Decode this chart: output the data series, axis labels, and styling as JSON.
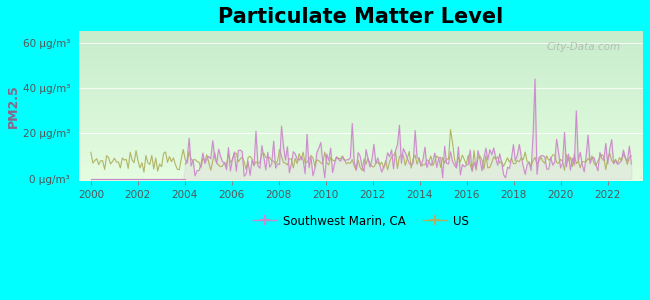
{
  "title": "Particulate Matter Level",
  "ylabel": "PM2.5",
  "ytick_labels": [
    "0 μg/m³",
    "20 μg/m³",
    "40 μg/m³",
    "60 μg/m³"
  ],
  "ytick_values": [
    0,
    20,
    40,
    60
  ],
  "xlim": [
    1999.5,
    2023.5
  ],
  "ylim": [
    -1,
    65
  ],
  "background_outer": "#00ffff",
  "bg_top_color": "#c8eec8",
  "bg_bottom_color": "#e8fce8",
  "sw_marin_color": "#cc88cc",
  "us_color": "#b0b060",
  "sw_marin_label": "Southwest Marin, CA",
  "us_label": "US",
  "watermark": "City-Data.com",
  "title_fontsize": 15,
  "axis_label_color": "#886688",
  "tick_label_color": "#555555"
}
